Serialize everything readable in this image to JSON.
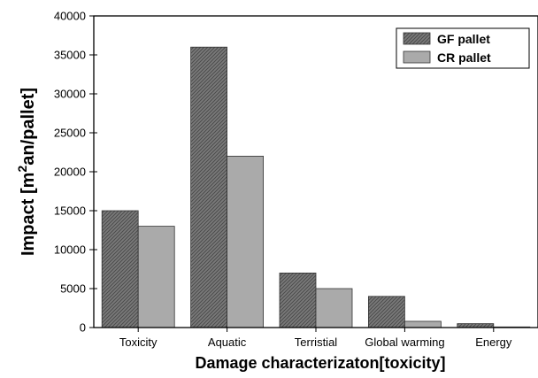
{
  "chart_data": {
    "type": "bar",
    "title": "",
    "xlabel": "Damage characterizaton[toxicity]",
    "ylabel": {
      "prefix": "Impact [m",
      "sup": "2",
      "suffix": "an/pallet]"
    },
    "categories": [
      "Toxicity",
      "Aquatic",
      "Terristial",
      "Global warming",
      "Energy"
    ],
    "series": [
      {
        "name": "GF pallet",
        "values": [
          15000,
          36000,
          7000,
          4000,
          500
        ],
        "color": "#777777",
        "pattern": "hatched"
      },
      {
        "name": "CR pallet",
        "values": [
          13000,
          22000,
          5000,
          800,
          80
        ],
        "color": "#aaaaaa",
        "pattern": "solid"
      }
    ],
    "ylim": [
      0,
      40000
    ],
    "yticks": [
      "0",
      "5000",
      "10000",
      "15000",
      "20000",
      "25000",
      "30000",
      "35000",
      "40000"
    ],
    "grid": false,
    "legend_position": "top-right"
  }
}
